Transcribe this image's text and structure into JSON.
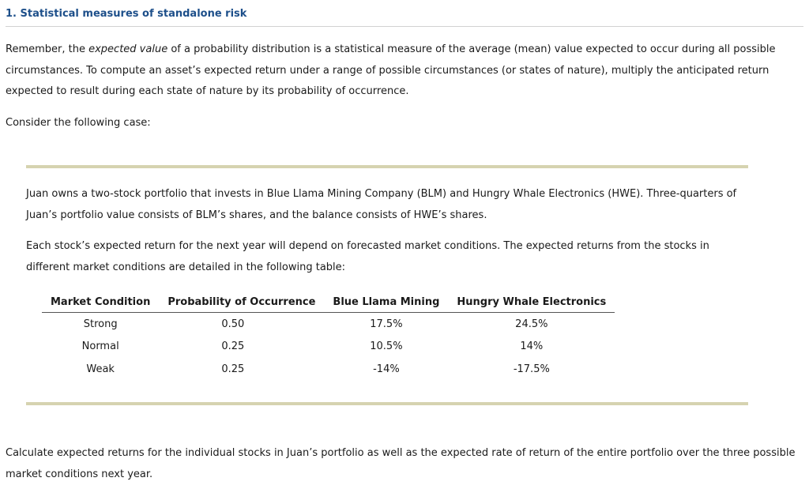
{
  "section": {
    "title": "1. Statistical measures of standalone risk"
  },
  "intro": {
    "part1": "Remember, the ",
    "italic": "expected value",
    "part2": " of a probability distribution is a statistical measure of the average (mean) value expected to occur during all possible circumstances. To compute an asset’s expected return under a range of possible circumstances (or states of nature), multiply the anticipated return expected to result during each state of nature by its probability of occurrence."
  },
  "consider": "Consider the following case:",
  "case": {
    "paragraph1": "Juan owns a two-stock portfolio that invests in Blue Llama Mining Company (BLM) and Hungry Whale Electronics (HWE). Three-quarters of Juan’s portfolio value consists of BLM’s shares, and the balance consists of HWE’s shares.",
    "paragraph2": "Each stock’s expected return for the next year will depend on forecasted market conditions. The expected returns from the stocks in different market conditions are detailed in the following table:"
  },
  "table": {
    "headers": [
      "Market Condition",
      "Probability of Occurrence",
      "Blue Llama Mining",
      "Hungry Whale Electronics"
    ],
    "rows": [
      [
        "Strong",
        "0.50",
        "17.5%",
        "24.5%"
      ],
      [
        "Normal",
        "0.25",
        "10.5%",
        "14%"
      ],
      [
        "Weak",
        "0.25",
        "-14%",
        "-17.5%"
      ]
    ]
  },
  "question": "Calculate expected returns for the individual stocks in Juan’s portfolio as well as the expected rate of return of the entire portfolio over the three possible market conditions next year."
}
